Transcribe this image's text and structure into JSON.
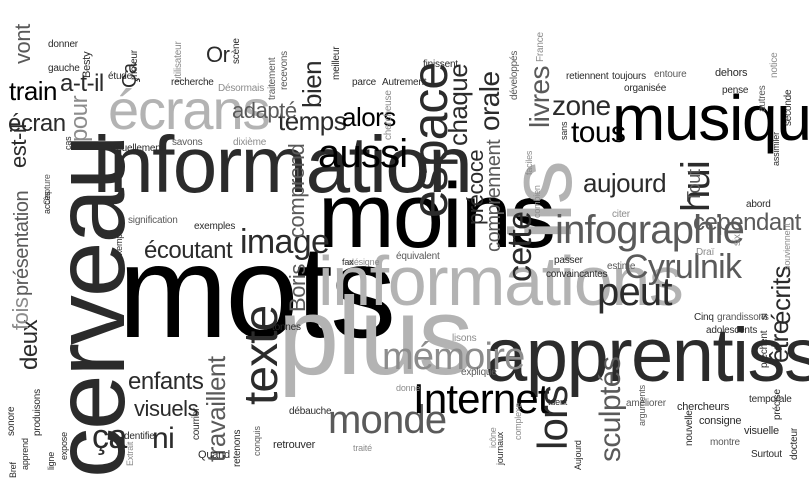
{
  "words": {
    "mots": "mots",
    "cerveau": "cerveau",
    "moins": "moins",
    "plus": "plus",
    "information": "information",
    "informations": "informations",
    "apprentissage": "apprentissage",
    "musique": "musique",
    "ils": "ils",
    "ecrans": "écrans",
    "espace": "espace",
    "infographie": "infographie",
    "memoire": "mémoire",
    "monde": "monde",
    "internet": "Internet",
    "image": "image",
    "texte": "texte",
    "cyrulnik": "Cyrulnik",
    "aussi": "aussi",
    "peut": "peut",
    "lors": "lors",
    "sculptes": "sculptés",
    "hui": "hui",
    "aujourd": "aujourd",
    "cette": "cette",
    "temps": "temps",
    "chaque": "chaque",
    "orale": "orale",
    "precoce": "précoce",
    "livres": "livres",
    "zone": "zone",
    "tous": "tous",
    "ecrits": "écrits",
    "etre": "être",
    "cependant": "cependant",
    "ecoutant": "écoutant",
    "enfants": "enfants",
    "visuels": "visuels",
    "travaillent": "travaillent",
    "ni": "ni",
    "ca": "ça",
    "deux": "deux",
    "fois": "fois",
    "presentation": "présentation",
    "est_il": "est-il",
    "ecran": "écran",
    "train": "train",
    "a_t_il": "a-t-il",
    "vont": "vont",
    "pour": "pour",
    "adapte": "adapté",
    "alors": "alors",
    "bien": "bien",
    "comprend": "comprend",
    "comprennent": "comprennent",
    "boris": "Boris",
    "or": "Or",
    "ca_small": "Ça",
    "tout": "Tout",
    "donner": "donner",
    "besty": "Besty",
    "moteur": "moteur",
    "utilisateur": "utilisateur",
    "scene": "scène",
    "traitement": "traitement",
    "meilleur": "meilleur",
    "finissent": "finissent",
    "developpes": "développés",
    "france": "France",
    "entoure": "entoure",
    "notice": "notice",
    "dehors": "dehors",
    "pense": "pense",
    "autres": "autres",
    "seconde": "seconde",
    "organisee": "organisée",
    "toujours": "toujours",
    "retiennent": "retiennent",
    "autrement": "Autrement",
    "parce": "parce",
    "recevons": "recevons",
    "desormais": "Désormais",
    "recherche": "recherche",
    "etude": "étude",
    "gauche": "gauche",
    "chercheuse": "chercheuse",
    "sans": "sans",
    "faciles": "faciles",
    "combien": "combien",
    "citer": "citer",
    "abord": "abord",
    "assimiler": "assimiler",
    "souviennent": "souviennent",
    "six": "six",
    "drai": "Draï",
    "estime": "estime",
    "passer": "passer",
    "equivalent": "équivalent",
    "designe": "désigne",
    "fax": "fax",
    "exemples": "exemples",
    "signification": "signification",
    "exemple": "exemple",
    "visuellement": "visuellement",
    "savons": "savons",
    "dixieme": "dixième",
    "cas": "cas",
    "capture": "Capture",
    "acces": "accès",
    "tonnes": "tonnes",
    "lisons": "lisons",
    "convaincantes": "convaincantes",
    "cinq": "Cinq",
    "adolescents": "adolescents",
    "grandissons": "grandissons",
    "si": "si",
    "prechent": "prêchent",
    "precise": "précise",
    "temporale": "temporale",
    "docteur": "docteur",
    "surtout": "Surtout",
    "visuelle": "visuelle",
    "consigne": "consigne",
    "chercheurs": "chercheurs",
    "arguments": "arguments",
    "nouvelle": "nouvelle",
    "montre": "montre",
    "ameliorer": "améliorer",
    "aujourd_small": "Aujourd",
    "tuent": "tuent",
    "complexe": "complexe",
    "icone": "icône",
    "journaux": "journaux",
    "explique": "explique",
    "donne": "donne",
    "traite": "traité",
    "debauche": "débauche",
    "retrouver": "retrouver",
    "conquis": "conquis",
    "courrier": "courrier",
    "retenons": "retenons",
    "quand": "Quand",
    "identifie": "identifie",
    "extrait": "Extrait",
    "expose": "expose",
    "apprend": "apprend",
    "ligne": "ligne",
    "sonore": "sonore",
    "bref": "Bref",
    "produisons": "produisons"
  }
}
